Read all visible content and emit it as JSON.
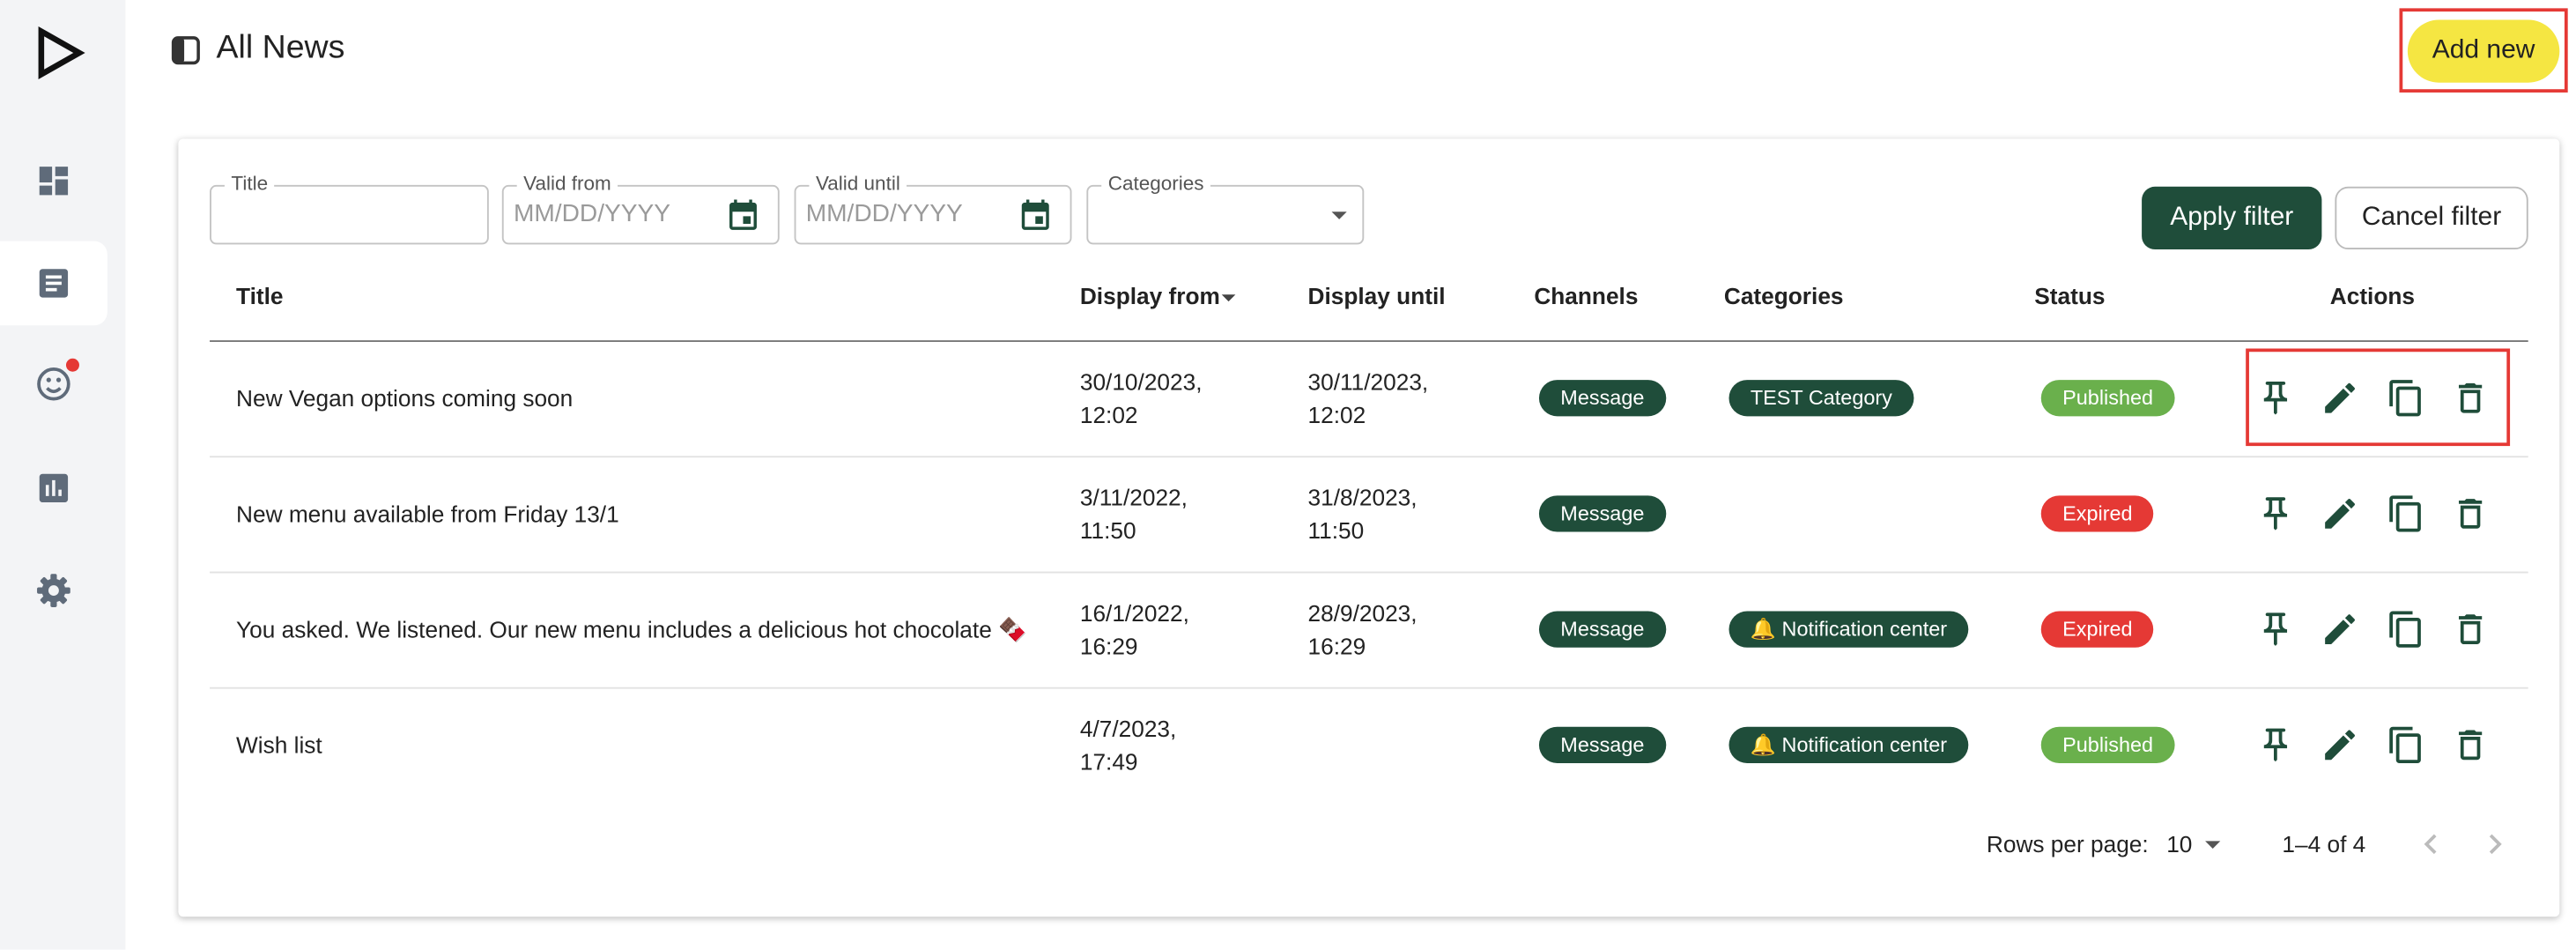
{
  "header": {
    "title": "All News",
    "add_button": "Add new"
  },
  "filters": {
    "fields": [
      {
        "label": "Title"
      },
      {
        "label": "Valid from",
        "placeholder": "MM/DD/YYYY"
      },
      {
        "label": "Valid until",
        "placeholder": "MM/DD/YYYY"
      },
      {
        "label": "Categories"
      }
    ],
    "apply": "Apply filter",
    "cancel": "Cancel filter"
  },
  "table": {
    "columns": [
      "Title",
      "Display from",
      "Display until",
      "Channels",
      "Categories",
      "Status",
      "Actions"
    ],
    "rows": [
      {
        "title": "New Vegan options coming soon",
        "display_from": "30/10/2023, 12:02",
        "display_until": "30/11/2023, 12:02",
        "channels": [
          "Message"
        ],
        "categories": [
          "TEST Category"
        ],
        "status": "Published"
      },
      {
        "title": "New menu available from Friday 13/1",
        "display_from": "3/11/2022, 11:50",
        "display_until": "31/8/2023, 11:50",
        "channels": [
          "Message"
        ],
        "categories": [],
        "status": "Expired"
      },
      {
        "title": "You asked. We listened. Our new menu includes a delicious hot chocolate 🍫",
        "display_from": "16/1/2022, 16:29",
        "display_until": "28/9/2023, 16:29",
        "channels": [
          "Message"
        ],
        "categories": [
          "🔔 Notification center"
        ],
        "status": "Expired"
      },
      {
        "title": "Wish list",
        "display_from": "4/7/2023, 17:49",
        "display_until": null,
        "channels": [
          "Message"
        ],
        "categories": [
          "🔔 Notification center"
        ],
        "status": "Published"
      }
    ]
  },
  "pagination": {
    "rows_per_page_label": "Rows per page:",
    "rows_per_page": 10,
    "range": "1–4 of 4"
  }
}
